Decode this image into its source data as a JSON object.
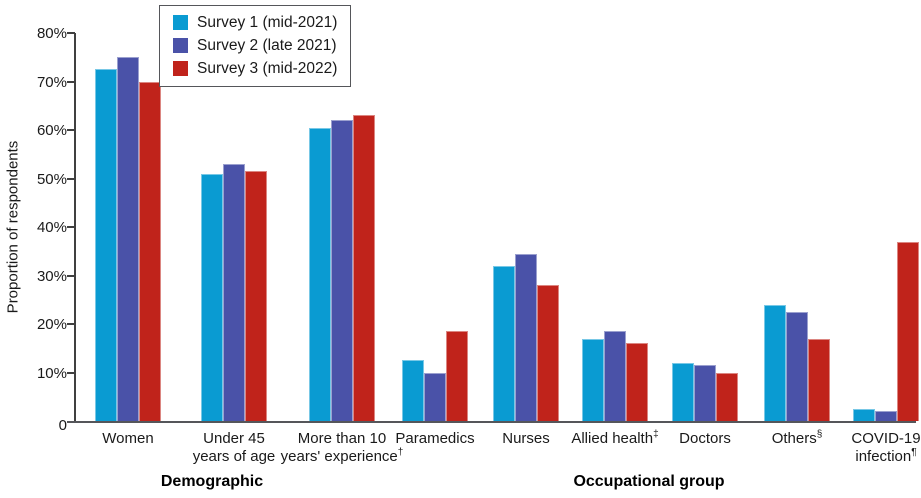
{
  "chart_data": {
    "type": "bar",
    "title": "",
    "ylabel": "Proportion of respondents",
    "xlabel": "",
    "ylim": [
      0,
      80
    ],
    "grid": false,
    "legend_position": "top-left-inside",
    "ytick_values": [
      0,
      10,
      20,
      30,
      40,
      50,
      60,
      70,
      80
    ],
    "ytick_labels": [
      "0",
      "10%",
      "20%",
      "30%",
      "40%",
      "50%",
      "60%",
      "70%",
      "80%"
    ],
    "categories": [
      {
        "lines": [
          "Women"
        ],
        "sup": "",
        "center": 53
      },
      {
        "lines": [
          "Under 45",
          "years of age"
        ],
        "sup": "",
        "center": 159
      },
      {
        "lines": [
          "More than 10",
          "years' experience"
        ],
        "sup": "†",
        "center": 267
      },
      {
        "lines": [
          "Paramedics"
        ],
        "sup": "",
        "center": 360
      },
      {
        "lines": [
          "Nurses"
        ],
        "sup": "",
        "center": 451
      },
      {
        "lines": [
          "Allied health"
        ],
        "sup": "‡",
        "center": 540
      },
      {
        "lines": [
          "Doctors"
        ],
        "sup": "",
        "center": 630
      },
      {
        "lines": [
          "Others"
        ],
        "sup": "§",
        "center": 722
      },
      {
        "lines": [
          "COVID-19",
          "infection"
        ],
        "sup": "¶",
        "center": 811
      }
    ],
    "series": [
      {
        "name": "Survey 1 (mid-2021)",
        "color": "#0A9BD2",
        "values": [
          72.5,
          51,
          60.5,
          12.5,
          32,
          17,
          12,
          24,
          2.5
        ]
      },
      {
        "name": "Survey 2 (late 2021)",
        "color": "#4A52A8",
        "values": [
          75,
          53,
          62,
          10,
          34.5,
          18.5,
          11.5,
          22.5,
          2
        ]
      },
      {
        "name": "Survey 3 (mid-2022)",
        "color": "#C0231B",
        "values": [
          70,
          51.5,
          63,
          18.5,
          28,
          16,
          10,
          17,
          37
        ]
      }
    ],
    "axis_sections": [
      {
        "label": "Demographic",
        "center": 137
      },
      {
        "label": "Occupational group",
        "center": 574
      }
    ]
  },
  "colors": {
    "axis": "#404040",
    "baseline": "#55565a",
    "text": "#1a1a1a"
  }
}
